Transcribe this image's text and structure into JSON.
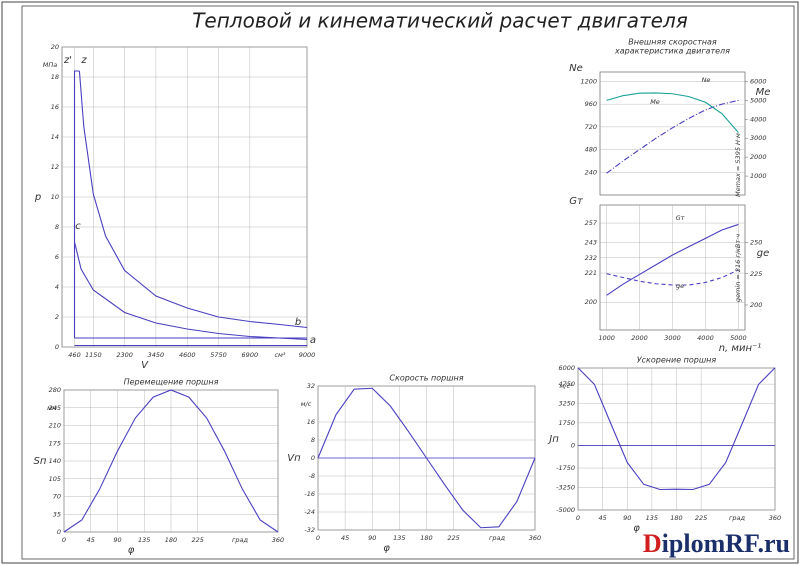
{
  "page_title": "Тепловой и кинематический расчет двигателя",
  "watermark": {
    "first": "D",
    "rest": "iplomRF.ru"
  },
  "chart_data": [
    {
      "type": "line",
      "xlabel": "V",
      "ylabel": "p",
      "y_unit": "МПа",
      "x_unit": "см³",
      "xlim": [
        0,
        9000
      ],
      "ylim": [
        0,
        20
      ],
      "xticks": [
        460,
        1150,
        2300,
        3450,
        4600,
        5750,
        6900,
        9000
      ],
      "yticks": [
        0,
        2,
        4,
        6,
        8,
        10,
        12,
        14,
        16,
        18,
        20
      ],
      "grid": true,
      "annotations": [
        "z'",
        "z",
        "c",
        "b",
        "a"
      ],
      "series": [
        {
          "color": "#4a3fc0",
          "x": [
            460,
            460,
            640
          ],
          "values": [
            0.6,
            18.4,
            18.4
          ]
        },
        {
          "color": "#4a3fc0",
          "x": [
            640,
            800,
            1150,
            1600,
            2300,
            3450,
            4600,
            5750,
            6900,
            8000,
            9000
          ],
          "values": [
            18.4,
            14.7,
            10.2,
            7.4,
            5.1,
            3.4,
            2.6,
            2.0,
            1.7,
            1.5,
            1.3
          ]
        },
        {
          "color": "#4a3fc0",
          "x": [
            460,
            700,
            1150,
            2300,
            3450,
            4600,
            5750,
            6900,
            9000
          ],
          "values": [
            7.0,
            5.2,
            3.8,
            2.3,
            1.6,
            1.2,
            0.9,
            0.7,
            0.5
          ]
        },
        {
          "color": "#4a3fc0",
          "x": [
            460,
            9000
          ],
          "values": [
            0.6,
            0.6
          ]
        },
        {
          "color": "#4a3fc0",
          "x": [
            460,
            9000
          ],
          "values": [
            0.1,
            0.1
          ]
        }
      ]
    },
    {
      "type": "line",
      "title": [
        "Внешняя скоростная",
        "характеристика двигателя"
      ],
      "ylabel": "Nе",
      "y2label": "Mе",
      "x": [
        1000,
        1500,
        2000,
        2500,
        3000,
        3500,
        4000,
        4500,
        5000
      ],
      "xlim": [
        800,
        5200
      ],
      "ylim": [
        0,
        1300
      ],
      "yticks": [
        240,
        480,
        720,
        960,
        1200
      ],
      "y2lim": [
        0,
        6500
      ],
      "y2ticks": [
        1000,
        2000,
        3000,
        4000,
        5000,
        6000
      ],
      "grid": true,
      "annotations": [
        "Nе",
        "Mе",
        "Mеmax = 5395 Н·м"
      ],
      "series": [
        {
          "color": "#4a3fc0",
          "dash": "dashdot",
          "values": [
            230,
            360,
            480,
            600,
            710,
            810,
            900,
            960,
            1000
          ]
        },
        {
          "color": "#16a096",
          "axis": "y2",
          "values": [
            5000,
            5250,
            5380,
            5395,
            5350,
            5200,
            4900,
            4300,
            3300
          ]
        }
      ]
    },
    {
      "type": "line",
      "ylabel": "Gт",
      "y2label": "gе",
      "xlabel": "n, мин⁻¹",
      "x": [
        1000,
        1500,
        2000,
        2500,
        3000,
        3500,
        4000,
        4500,
        5000
      ],
      "xlim": [
        800,
        5200
      ],
      "ylim": [
        180,
        270
      ],
      "xticks": [
        1000,
        2000,
        3000,
        4000,
        5000
      ],
      "yticks": [
        200,
        221,
        232,
        243,
        257
      ],
      "y2lim": [
        180,
        280
      ],
      "y2ticks": [
        200,
        225,
        250
      ],
      "grid": true,
      "annotations": [
        "Gт",
        "gе",
        "gеmin = 216 г/кВт·ч"
      ],
      "series": [
        {
          "color": "#4a3fc0",
          "values": [
            205,
            213,
            220,
            227,
            234,
            240,
            246,
            252,
            256
          ]
        },
        {
          "color": "#4a3fc0",
          "dash": "dash",
          "axis": "y2",
          "values": [
            225,
            222,
            219,
            217,
            216,
            216,
            218,
            222,
            228
          ]
        }
      ]
    },
    {
      "type": "line",
      "title": "Перемещение поршня",
      "xlabel": "φ",
      "ylabel": "Sп",
      "y_unit": "мм",
      "x_unit": "град",
      "x": [
        0,
        30,
        60,
        90,
        120,
        150,
        180,
        210,
        240,
        270,
        300,
        330,
        360
      ],
      "xlim": [
        0,
        360
      ],
      "ylim": [
        0,
        280
      ],
      "xticks": [
        0,
        45,
        90,
        135,
        180,
        225,
        360
      ],
      "yticks": [
        0,
        35,
        70,
        105,
        140,
        175,
        210,
        245,
        280
      ],
      "grid": true,
      "series": [
        {
          "color": "#4a3fc0",
          "values": [
            0,
            23.7,
            84.7,
            159.6,
            224.7,
            266,
            280,
            266,
            224.7,
            159.6,
            84.7,
            23.7,
            0
          ]
        }
      ]
    },
    {
      "type": "line",
      "title": "Скорость поршня",
      "xlabel": "φ",
      "ylabel": "Vп",
      "y_unit": "м/с",
      "x_unit": "град",
      "x": [
        0,
        30,
        60,
        90,
        120,
        150,
        180,
        210,
        240,
        270,
        300,
        330,
        360
      ],
      "xlim": [
        0,
        360
      ],
      "ylim": [
        -32,
        32
      ],
      "xticks": [
        0,
        45,
        90,
        135,
        180,
        225,
        360
      ],
      "yticks": [
        -32,
        -24,
        -16,
        -8,
        0,
        8,
        16,
        32
      ],
      "grid": true,
      "series": [
        {
          "color": "#4a3fc0",
          "values": [
            0,
            19.3,
            30.6,
            31,
            23.1,
            11.8,
            0,
            -11.8,
            -23.1,
            -31,
            -30.6,
            -19.3,
            0
          ]
        }
      ]
    },
    {
      "type": "line",
      "title": "Ускорение поршня",
      "xlabel": "φ",
      "ylabel": "Jп",
      "y_unit": "м/с²",
      "x_unit": "град",
      "x": [
        0,
        30,
        60,
        90,
        120,
        150,
        180,
        210,
        240,
        270,
        300,
        330,
        360
      ],
      "xlim": [
        0,
        360
      ],
      "ylim": [
        -5000,
        6000
      ],
      "xticks": [
        0,
        45,
        90,
        135,
        180,
        225,
        360
      ],
      "yticks": [
        -5000,
        -3250,
        -1750,
        0,
        1750,
        3250,
        4750,
        6000
      ],
      "grid": true,
      "series": [
        {
          "color": "#4a3fc0",
          "values": [
            6016,
            4728,
            1692,
            -1316,
            -3008,
            -3412,
            -3384,
            -3412,
            -3008,
            -1316,
            1692,
            4728,
            6016
          ]
        }
      ]
    }
  ]
}
